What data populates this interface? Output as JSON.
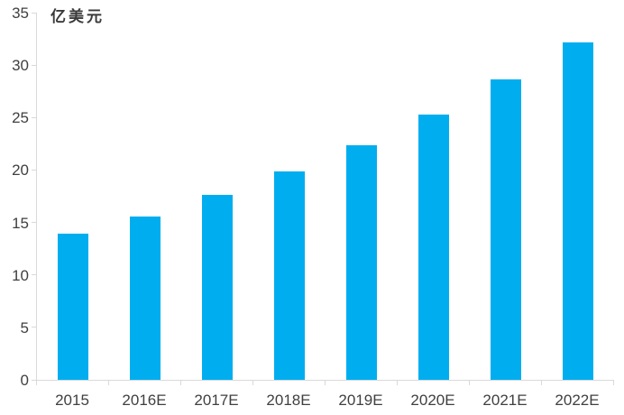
{
  "chart_data": {
    "type": "bar",
    "title": "",
    "ylabel": "亿美元",
    "xlabel": "",
    "categories": [
      "2015",
      "2016E",
      "2017E",
      "2018E",
      "2019E",
      "2020E",
      "2021E",
      "2022E"
    ],
    "values": [
      13.9,
      15.6,
      17.6,
      19.9,
      22.4,
      25.3,
      28.6,
      32.2
    ],
    "ylim": [
      0,
      35
    ],
    "ytick_step": 5,
    "yticks": [
      0,
      5,
      10,
      15,
      20,
      25,
      30,
      35
    ],
    "grid": false,
    "legend_position": "none",
    "bar_color": "#00AEEF",
    "axis_color": "#D9D9D9",
    "text_color": "#404040",
    "background_color": "#FFFFFF"
  }
}
